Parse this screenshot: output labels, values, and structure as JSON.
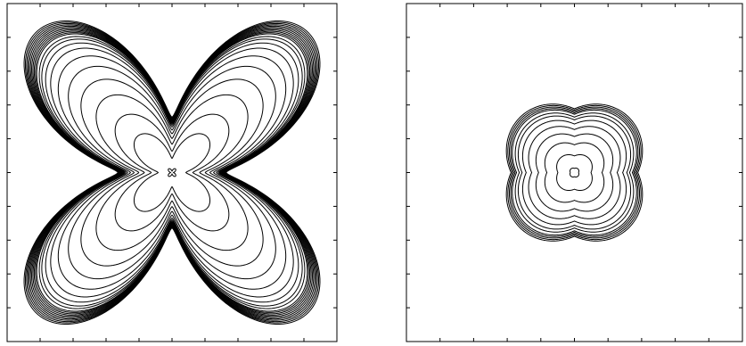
{
  "chart_data": [
    {
      "type": "contour",
      "xlim": [
        -1,
        1
      ],
      "ylim": [
        -1,
        1
      ],
      "xticks": [
        -1,
        -0.8,
        -0.6,
        -0.4,
        -0.2,
        0,
        0.2,
        0.4,
        0.6,
        0.8,
        1
      ],
      "yticks": [
        -1,
        -0.8,
        -0.6,
        -0.4,
        -0.2,
        0,
        0.2,
        0.4,
        0.6,
        0.8,
        1
      ],
      "color": "#000000",
      "levels": [
        0.03,
        0.3,
        0.45,
        0.6,
        0.72,
        0.82,
        0.9,
        0.96,
        1.0,
        1.03,
        1.05,
        1.07,
        1.08,
        1.09,
        1.1,
        1.11,
        1.12,
        1.13,
        1.14,
        1.15,
        1.16,
        1.17
      ]
    },
    {
      "type": "contour",
      "xlim": [
        -1,
        1
      ],
      "ylim": [
        -1,
        1
      ],
      "xticks": [
        -1,
        -0.8,
        -0.6,
        -0.4,
        -0.2,
        0,
        0.2,
        0.4,
        0.6,
        0.8,
        1
      ],
      "yticks": [
        -1,
        -0.8,
        -0.6,
        -0.4,
        -0.2,
        0,
        0.2,
        0.4,
        0.6,
        0.8,
        1
      ],
      "color": "#000000",
      "levels": [
        0.03,
        0.12,
        0.2,
        0.26,
        0.31,
        0.35,
        0.38,
        0.4,
        0.42,
        0.43,
        0.44,
        0.45,
        0.46
      ]
    }
  ]
}
